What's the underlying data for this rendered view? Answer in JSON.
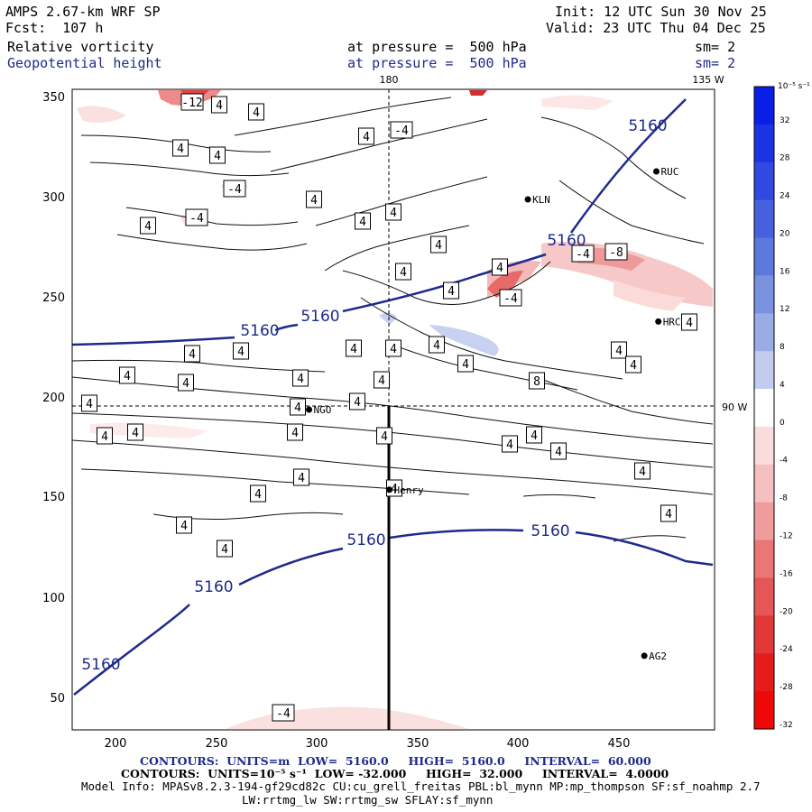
{
  "header": {
    "model_title": "AMPS 2.67-km WRF SP",
    "forecast": "Fcst:  107 h",
    "init": "Init: 12 UTC Sun 30 Nov 25",
    "valid": "Valid: 23 UTC Thu 04 Dec 25",
    "field1_name": "Relative vorticity",
    "field1_level": "at pressure =  500 hPa",
    "field1_smooth": "sm= 2",
    "field2_name": "Geopotential height",
    "field2_level": "at pressure =  500 hPa",
    "field2_smooth": "sm= 2"
  },
  "map": {
    "lon_labels": {
      "top_180": "180",
      "top_135W": "135 W",
      "right_90W": "90 W"
    },
    "x_ticks": [
      "200",
      "250",
      "300",
      "350",
      "400",
      "450"
    ],
    "y_ticks": [
      "50",
      "100",
      "150",
      "200",
      "250",
      "300",
      "350"
    ],
    "stations": [
      {
        "name": "KLN",
        "x": 402,
        "y": 300
      },
      {
        "name": "RUC",
        "x": 466,
        "y": 314
      },
      {
        "name": "HRC",
        "x": 467,
        "y": 239
      },
      {
        "name": "NGO",
        "x": 293,
        "y": 195
      },
      {
        "name": "Henry",
        "x": 333,
        "y": 155
      },
      {
        "name": "AG2",
        "x": 460,
        "y": 72
      }
    ],
    "height_labels": [
      {
        "text": "5160",
        "x": 75,
        "y": 228
      },
      {
        "text": "5160",
        "x": 78,
        "y": 366
      },
      {
        "text": "5160",
        "x": 210,
        "y": 276
      },
      {
        "text": "5160",
        "x": 242,
        "y": 316
      },
      {
        "text": "5160",
        "x": 282,
        "y": 327
      },
      {
        "text": "5160",
        "x": 337,
        "y": 327
      },
      {
        "text": "5160",
        "x": 470,
        "y": 268
      },
      {
        "text": "5160",
        "x": 434,
        "y": 268
      },
      {
        "text": "5160",
        "x": 488,
        "y": 341
      },
      {
        "text": "5160",
        "x": 480,
        "y": 142
      },
      {
        "text": "5160",
        "x": 402,
        "y": 150
      }
    ],
    "vort_labels": [
      {
        "text": "-12",
        "x": 213,
        "y": 113
      },
      {
        "text": "4",
        "x": 243,
        "y": 116
      },
      {
        "text": "4",
        "x": 284,
        "y": 124
      },
      {
        "text": "4",
        "x": 241,
        "y": 172
      },
      {
        "text": "4",
        "x": 200,
        "y": 164
      },
      {
        "text": "-4",
        "x": 260,
        "y": 209
      },
      {
        "text": "4",
        "x": 348,
        "y": 221
      },
      {
        "text": "-4",
        "x": 218,
        "y": 241
      },
      {
        "text": "4",
        "x": 164,
        "y": 250
      },
      {
        "text": "4",
        "x": 406,
        "y": 151
      },
      {
        "text": "-4",
        "x": 445,
        "y": 144
      },
      {
        "text": "4",
        "x": 402,
        "y": 245
      },
      {
        "text": "4",
        "x": 436,
        "y": 235
      },
      {
        "text": "4",
        "x": 486,
        "y": 271
      },
      {
        "text": "4",
        "x": 447,
        "y": 301
      },
      {
        "text": "4",
        "x": 554,
        "y": 296
      },
      {
        "text": "4",
        "x": 500,
        "y": 322
      },
      {
        "text": "-4",
        "x": 566,
        "y": 330
      },
      {
        "text": "-4",
        "x": 646,
        "y": 281
      },
      {
        "text": "-8",
        "x": 683,
        "y": 279
      },
      {
        "text": "4",
        "x": 764,
        "y": 357
      },
      {
        "text": "4",
        "x": 213,
        "y": 392
      },
      {
        "text": "4",
        "x": 267,
        "y": 389
      },
      {
        "text": "4",
        "x": 392,
        "y": 386
      },
      {
        "text": "4",
        "x": 436,
        "y": 386
      },
      {
        "text": "4",
        "x": 484,
        "y": 382
      },
      {
        "text": "4",
        "x": 516,
        "y": 403
      },
      {
        "text": "4",
        "x": 686,
        "y": 388
      },
      {
        "text": "4",
        "x": 702,
        "y": 404
      },
      {
        "text": "4",
        "x": 141,
        "y": 416
      },
      {
        "text": "4",
        "x": 206,
        "y": 424
      },
      {
        "text": "4",
        "x": 333,
        "y": 419
      },
      {
        "text": "4",
        "x": 423,
        "y": 421
      },
      {
        "text": "8",
        "x": 595,
        "y": 422
      },
      {
        "text": "4",
        "x": 99,
        "y": 447
      },
      {
        "text": "4",
        "x": 396,
        "y": 445
      },
      {
        "text": "4",
        "x": 330,
        "y": 451
      },
      {
        "text": "4",
        "x": 116,
        "y": 483
      },
      {
        "text": "4",
        "x": 150,
        "y": 479
      },
      {
        "text": "4",
        "x": 327,
        "y": 479
      },
      {
        "text": "4",
        "x": 426,
        "y": 483
      },
      {
        "text": "4",
        "x": 565,
        "y": 492
      },
      {
        "text": "4",
        "x": 592,
        "y": 482
      },
      {
        "text": "4",
        "x": 619,
        "y": 500
      },
      {
        "text": "4",
        "x": 334,
        "y": 529
      },
      {
        "text": "4",
        "x": 712,
        "y": 522
      },
      {
        "text": "4",
        "x": 286,
        "y": 547
      },
      {
        "text": "4",
        "x": 437,
        "y": 541
      },
      {
        "text": "4",
        "x": 741,
        "y": 569
      },
      {
        "text": "4",
        "x": 204,
        "y": 582
      },
      {
        "text": "4",
        "x": 249,
        "y": 608
      },
      {
        "text": "-4",
        "x": 314,
        "y": 790
      }
    ],
    "colorbar": {
      "unit_label": "10⁻⁵ s⁻¹",
      "labels": [
        "32",
        "28",
        "24",
        "20",
        "16",
        "12",
        "8",
        "4",
        "0",
        "-4",
        "-8",
        "-12",
        "-16",
        "-20",
        "-24",
        "-28",
        "-32"
      ],
      "colors": [
        "#0a1ee6",
        "#1c33e4",
        "#3049e0",
        "#4761de",
        "#5d78dc",
        "#7a91df",
        "#9aace6",
        "#c2ccef",
        "#ffffff",
        "#fbdcdc",
        "#f6c0c0",
        "#f09c9c",
        "#ea7676",
        "#e55656",
        "#e23838",
        "#e61c1c",
        "#ee0808"
      ]
    }
  },
  "footer": {
    "contours1": "CONTOURS:  UNITS=m  LOW=  5160.0     HIGH=  5160.0     INTERVAL=  60.000",
    "contours2": "CONTOURS:  UNITS=10⁻⁵ s⁻¹  LOW= -32.000     HIGH=  32.000     INTERVAL=  4.0000",
    "model_info": "Model Info: MPASv8.2.3-194-gf29cd82c CU:cu_grell_freitas PBL:bl_mynn MP:mp_thompson SF:sf_noahmp 2.7",
    "model_info2": "LW:rrtmg_lw SW:rrtmg_sw SFLAY:sf_mynn"
  }
}
